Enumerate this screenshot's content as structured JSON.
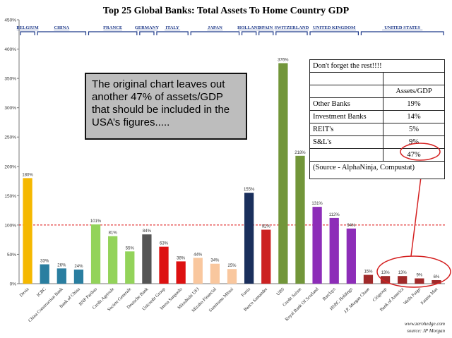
{
  "chart_data": {
    "type": "bar",
    "title": "Top 25 Global Banks: Total Assets To Home Country GDP",
    "ylim": [
      0,
      450
    ],
    "yticks": [
      0,
      50,
      100,
      150,
      200,
      250,
      300,
      350,
      400,
      450
    ],
    "ytick_suffix": "%",
    "reference_line": 100,
    "categories": [
      "Dexia",
      "ICBC",
      "China Construction Bank",
      "Bank of China",
      "BNP Paribas",
      "Credit Agricole",
      "Societe Generale",
      "Deutsche Bank",
      "Unicredit Group",
      "Intesa Sanpaolo",
      "Mitsubishi UFJ",
      "Mizuho Financial",
      "Sumitomo Mitsui",
      "Fortis",
      "Banco Santander",
      "UBS",
      "Credit Suisse",
      "Royal Bank Of Scotland",
      "Barclays",
      "HSBC Holdings",
      "J.P. Morgan Chase",
      "Citigroup",
      "Bank of America",
      "Wells Fargo",
      "Fannie Mae"
    ],
    "values": [
      180,
      33,
      26,
      24,
      101,
      81,
      55,
      84,
      63,
      38,
      44,
      34,
      25,
      155,
      92,
      376,
      218,
      131,
      112,
      94,
      15,
      13,
      13,
      9,
      6
    ],
    "colors": [
      "#f5b800",
      "#2a7ea0",
      "#2a7ea0",
      "#2a7ea0",
      "#93d35a",
      "#93d35a",
      "#93d35a",
      "#555555",
      "#dd1111",
      "#dd1111",
      "#f9c79e",
      "#f9c79e",
      "#f9c79e",
      "#1a2f5c",
      "#cc2222",
      "#72963a",
      "#72963a",
      "#8d2db8",
      "#8d2db8",
      "#8d2db8",
      "#a02a2a",
      "#a02a2a",
      "#a02a2a",
      "#a02a2a",
      "#a02a2a"
    ],
    "countries": [
      {
        "name": "BELGIUM",
        "start": 0,
        "end": 0
      },
      {
        "name": "CHINA",
        "start": 1,
        "end": 3
      },
      {
        "name": "FRANCE",
        "start": 4,
        "end": 6
      },
      {
        "name": "GERMANY",
        "start": 7,
        "end": 7
      },
      {
        "name": "ITALY",
        "start": 8,
        "end": 9
      },
      {
        "name": "JAPAN",
        "start": 10,
        "end": 12
      },
      {
        "name": "HOLLAND",
        "start": 13,
        "end": 13
      },
      {
        "name": "SPAIN",
        "start": 14,
        "end": 14
      },
      {
        "name": "SWITZERLAND",
        "start": 15,
        "end": 16
      },
      {
        "name": "UNITED KINGDOM",
        "start": 17,
        "end": 19
      },
      {
        "name": "UNITED STATES",
        "start": 20,
        "end": 24
      }
    ],
    "grid": false
  },
  "annotation": {
    "text": "The original chart leaves out another 47% of assets/GDP that should be included in the USA’s figures....."
  },
  "rest_table": {
    "title": "Don't forget the rest!!!!",
    "column_header": "Assets/GDP",
    "rows": [
      {
        "label": "Other Banks",
        "value": "19%"
      },
      {
        "label": "Investment Banks",
        "value": "14%"
      },
      {
        "label": "REIT's",
        "value": "5%"
      },
      {
        "label": "S&L's",
        "value": "9%"
      }
    ],
    "total": "47%",
    "source": "(Source - AlphaNinja, Compustat)"
  },
  "credits": {
    "line1": "www.zerohedge.com",
    "line2": "source: JP Morgan"
  },
  "colors": {
    "highlight_circle": "#d42020",
    "reference_line": "#dd1111"
  }
}
